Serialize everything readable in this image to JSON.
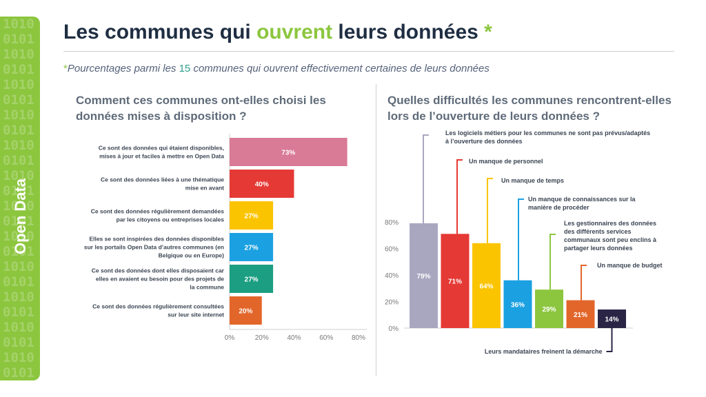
{
  "side_label": "Open Data",
  "side_binary": "10100101101001011010010110100101101001011010010110100101101001011010010110100101101001011010010110100101101001011010010110100101101001011010010110100101",
  "title": {
    "part1": "Les communes qui ",
    "highlight": "ouvrent",
    "part2": " leurs données ",
    "star": "*"
  },
  "subtitle": {
    "star": "*",
    "part1": "Pourcentages parmi les ",
    "count": "15",
    "part2": " communes qui ouvrent effectivement certaines de leurs données"
  },
  "colors": {
    "green": "#8cc63f",
    "pink": "#d97a96",
    "red": "#e53935",
    "yellow": "#fbc400",
    "blue": "#1ba1e2",
    "teal": "#1b9e82",
    "orange": "#e2662a",
    "lilac": "#a9a7c0",
    "navy": "#2a2545"
  },
  "chart_data": [
    {
      "type": "bar",
      "orientation": "horizontal",
      "title": "Comment ces communes ont-elles choisi les données mises à disposition ?",
      "categories": [
        [
          "Ce sont des données qui étaient disponibles,",
          "mises à jour et faciles à mettre en Open Data"
        ],
        [
          "Ce sont des données liées à une thématique",
          "mise en avant"
        ],
        [
          "Ce sont des données régulièrement demandées",
          "par les citoyens ou entreprises locales"
        ],
        [
          "Elles se sont inspirées des données disponibles",
          "sur les portails Open Data d’autres communes (en",
          "Belgique ou en Europe)"
        ],
        [
          "Ce sont des données dont elles disposaient car",
          "elles en avaient eu besoin pour des projets de",
          "la commune"
        ],
        [
          "Ce sont des données régulièrement consultées",
          "sur leur site internet"
        ]
      ],
      "values": [
        73,
        40,
        27,
        27,
        27,
        20
      ],
      "labels": [
        "73%",
        "40%",
        "27%",
        "27%",
        "27%",
        "20%"
      ],
      "colors": [
        "pink",
        "red",
        "yellow",
        "blue",
        "teal",
        "orange"
      ],
      "xlim": [
        0,
        80
      ],
      "ticks": [
        0,
        20,
        40,
        60,
        80
      ],
      "tick_labels": [
        "0%",
        "20%",
        "40%",
        "60%",
        "80%"
      ]
    },
    {
      "type": "bar",
      "orientation": "vertical",
      "title": "Quelles difficultés les communes rencontrent-elles lors de l’ouverture de leurs données ?",
      "categories": [
        [
          "Les logiciels métiers pour les communes ne sont pas prévus/adaptés",
          "à l’ouverture des données"
        ],
        [
          "Un manque de personnel"
        ],
        [
          "Un manque de temps"
        ],
        [
          "Un manque de connaissances sur la",
          "manière de procéder"
        ],
        [
          "Les gestionnaires des données",
          "des différents services",
          "communaux sont peu enclins à",
          "partager leurs données"
        ],
        [
          "Un manque de budget"
        ],
        [
          "Leurs mandataires freinent la démarche"
        ]
      ],
      "values": [
        79,
        71,
        64,
        36,
        29,
        21,
        14
      ],
      "labels": [
        "79%",
        "71%",
        "64%",
        "36%",
        "29%",
        "21%",
        "14%"
      ],
      "colors": [
        "lilac",
        "red",
        "yellow",
        "blue",
        "green",
        "orange",
        "navy"
      ],
      "ylim": [
        0,
        80
      ],
      "ticks": [
        0,
        20,
        40,
        60,
        80
      ],
      "tick_labels": [
        "0%",
        "20%",
        "40%",
        "60%",
        "80%"
      ]
    }
  ]
}
